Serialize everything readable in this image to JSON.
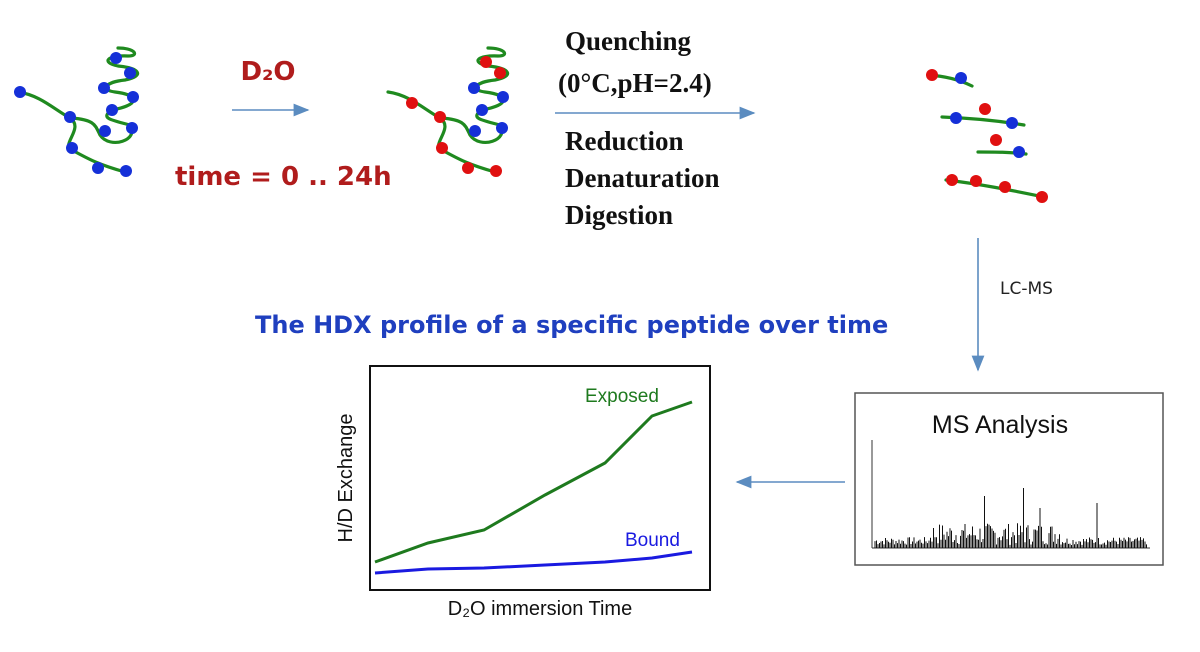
{
  "labeling": {
    "reagent": "D₂O",
    "time": "time = 0 .. 24h"
  },
  "quench": {
    "lines": [
      "Quenching",
      "(0°C,pH=2.4)"
    ]
  },
  "process": {
    "lines": [
      "Reduction",
      "Denaturation",
      "Digestion"
    ]
  },
  "separation": "LC-MS",
  "ms": {
    "title": "MS Analysis"
  },
  "profile": {
    "title": "The HDX profile of a specific peptide over time",
    "y_label": "H/D Exchange",
    "x_label": "D₂O immersion Time",
    "series": [
      "Exposed",
      "Bound"
    ]
  }
}
